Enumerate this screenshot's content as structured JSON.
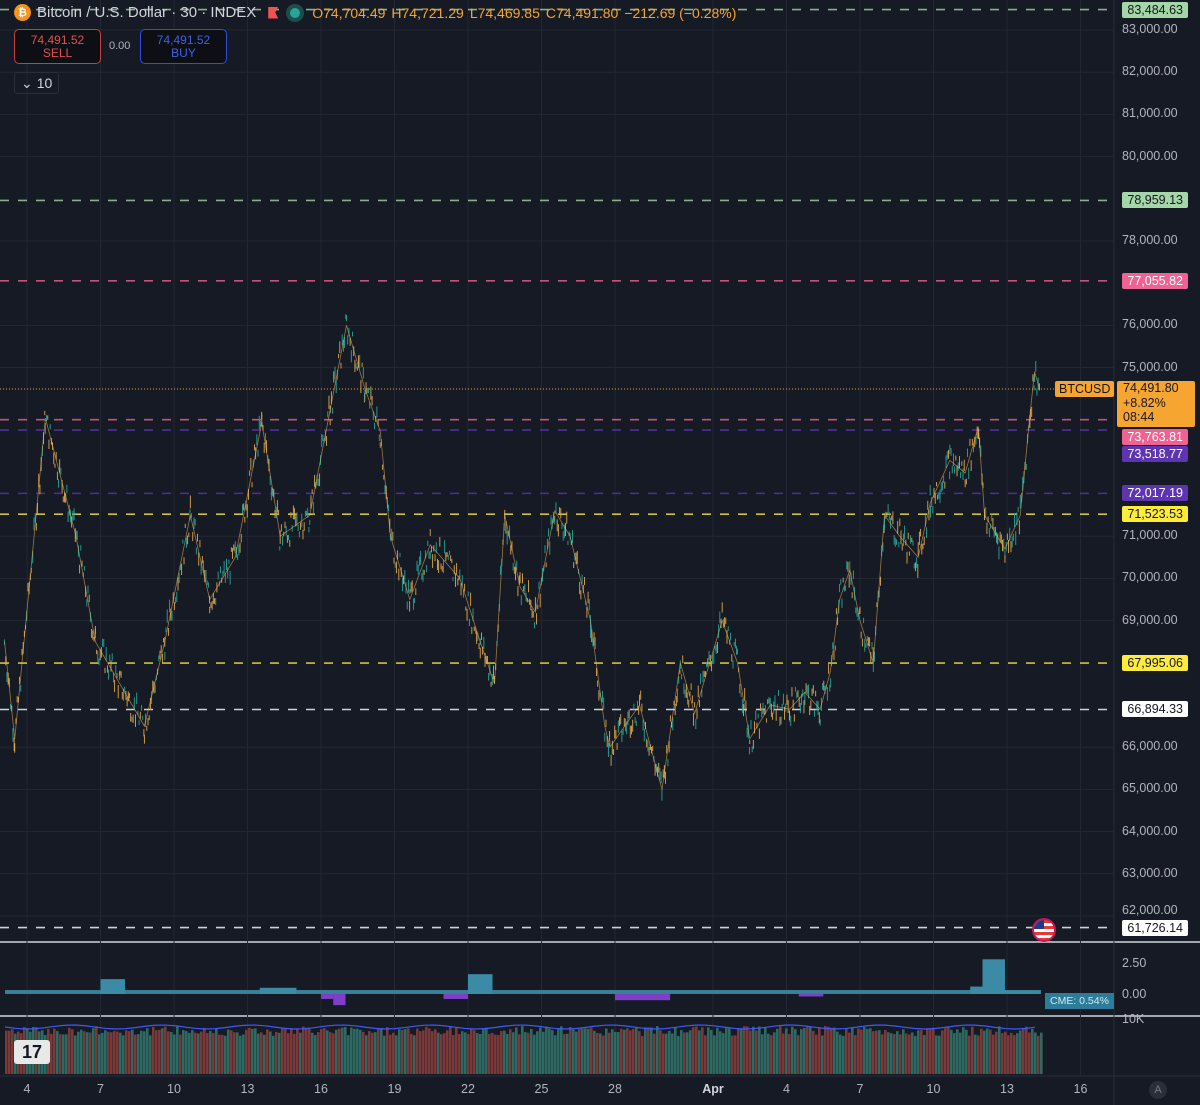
{
  "header": {
    "symbol_icon": "bitcoin-icon",
    "title": "Bitcoin / U.S. Dollar · 30 · INDEX",
    "open": "O74,704.49",
    "high": "H74,721.29",
    "low": "L74,469.85",
    "close": "C74,491.80",
    "change": "−212.69 (−0.28%)"
  },
  "trade": {
    "sell_price": "74,491.52",
    "sell_label": "SELL",
    "spread": "0.00",
    "buy_price": "74,491.52",
    "buy_label": "BUY",
    "collapse_label": "10"
  },
  "price_axis": {
    "ticks": [
      "83,000.00",
      "82,000.00",
      "81,000.00",
      "80,000.00",
      "78,000.00",
      "76,000.00",
      "75,000.00",
      "71,000.00",
      "70,000.00",
      "69,000.00",
      "66,000.00",
      "65,000.00",
      "64,000.00",
      "63,000.00",
      "62,000.00"
    ]
  },
  "last_price": {
    "symbol": "BTCUSD",
    "price": "74,491.80",
    "change_pct": "+8.82%",
    "countdown": "08:44",
    "color": "#f7a531"
  },
  "levels": [
    {
      "value": "83,484.63",
      "color": "#a5d6a7"
    },
    {
      "value": "78,959.13",
      "color": "#a5d6a7"
    },
    {
      "value": "77,055.82",
      "color": "#f06292"
    },
    {
      "value": "73,763.81",
      "color": "#f06292"
    },
    {
      "value": "73,518.77",
      "color": "#5e35b1"
    },
    {
      "value": "72,017.19",
      "color": "#5e35b1"
    },
    {
      "value": "71,523.53",
      "color": "#ffeb3b"
    },
    {
      "value": "67,995.06",
      "color": "#ffeb3b"
    },
    {
      "value": "66,894.33",
      "color": "#ffffff"
    },
    {
      "value": "61,726.14",
      "color": "#ffffff"
    }
  ],
  "indicator": {
    "ticks": [
      "2.50",
      "0.00"
    ],
    "label": "CME: 0.54%"
  },
  "volume": {
    "tick": "10K"
  },
  "time_axis": {
    "labels": [
      "4",
      "7",
      "10",
      "13",
      "16",
      "19",
      "22",
      "25",
      "28",
      "Apr",
      "4",
      "7",
      "10",
      "13",
      "16"
    ],
    "auto_label": "A"
  },
  "chart_data": {
    "type": "line",
    "title": "Bitcoin / U.S. Dollar · 30 · INDEX",
    "ylim": [
      61500,
      83600
    ],
    "x_unit": "month-day hour",
    "xlim": [
      "03-03 02:00",
      "04-17 00:00"
    ],
    "grid": true,
    "series": [
      {
        "name": "BTCUSD",
        "points": [
          [
            "03-03 02:00",
            68500
          ],
          [
            "03-03 12:00",
            66200
          ],
          [
            "03-04 18:00",
            73800
          ],
          [
            "03-05 08:00",
            72500
          ],
          [
            "03-06 00:00",
            71000
          ],
          [
            "03-06 19:00",
            68500
          ],
          [
            "03-07 19:00",
            67500
          ],
          [
            "03-08 19:00",
            66500
          ],
          [
            "03-09 15:00",
            68500
          ],
          [
            "03-10 16:00",
            71500
          ],
          [
            "03-11 11:00",
            69500
          ],
          [
            "03-12 12:00",
            70500
          ],
          [
            "03-13 14:00",
            73700
          ],
          [
            "03-14 08:00",
            71000
          ],
          [
            "03-15 13:00",
            71500
          ],
          [
            "03-16 09:00",
            74000
          ],
          [
            "03-17 01:00",
            76000
          ],
          [
            "03-17 19:00",
            74500
          ],
          [
            "03-18 10:00",
            73500
          ],
          [
            "03-18 20:00",
            71000
          ],
          [
            "03-19 15:00",
            69500
          ],
          [
            "03-20 11:00",
            70800
          ],
          [
            "03-21 16:00",
            70000
          ],
          [
            "03-22 12:00",
            68500
          ],
          [
            "03-23 02:00",
            67500
          ],
          [
            "03-23 12:00",
            71500
          ],
          [
            "03-24 03:00",
            69800
          ],
          [
            "03-24 18:00",
            69200
          ],
          [
            "03-25 13:00",
            71600
          ],
          [
            "03-26 04:00",
            71000
          ],
          [
            "03-27 00:00",
            69000
          ],
          [
            "03-27 14:00",
            66500
          ],
          [
            "03-27 19:00",
            66000
          ],
          [
            "03-29 00:00",
            67000
          ],
          [
            "03-29 22:00",
            65000
          ],
          [
            "03-30 16:00",
            68000
          ],
          [
            "03-31 06:00",
            66800
          ],
          [
            "04-01 09:00",
            69000
          ],
          [
            "04-02 00:00",
            68000
          ],
          [
            "04-02 12:00",
            66200
          ],
          [
            "04-03 08:00",
            67000
          ],
          [
            "04-04 03:00",
            66900
          ],
          [
            "04-04 18:00",
            67300
          ],
          [
            "04-05 09:00",
            66900
          ],
          [
            "04-05 19:00",
            67800
          ],
          [
            "04-06 04:00",
            69500
          ],
          [
            "04-06 14:00",
            70200
          ],
          [
            "04-07 00:00",
            69000
          ],
          [
            "04-07 13:00",
            68000
          ],
          [
            "04-08 00:00",
            71500
          ],
          [
            "04-08 15:00",
            71000
          ],
          [
            "04-09 09:00",
            70500
          ],
          [
            "04-09 21:00",
            71800
          ],
          [
            "04-10 16:00",
            72800
          ],
          [
            "04-11 07:00",
            72500
          ],
          [
            "04-11 20:00",
            73600
          ],
          [
            "04-12 02:00",
            71500
          ],
          [
            "04-12 22:00",
            70700
          ],
          [
            "04-13 13:00",
            71500
          ],
          [
            "04-13 23:00",
            74000
          ],
          [
            "04-14 03:00",
            74900
          ],
          [
            "04-14 08:00",
            74491.8
          ]
        ]
      }
    ],
    "indicator_series": {
      "name": "CME",
      "ylim": [
        -0.9,
        3.2
      ],
      "segments": [
        [
          "03-07 00:00",
          "03-08 00:00",
          1.2
        ],
        [
          "03-13 12:00",
          "03-15 00:00",
          0.5
        ],
        [
          "03-16 00:00",
          "03-16 12:00",
          -0.4
        ],
        [
          "03-16 12:00",
          "03-17 00:00",
          -0.9
        ],
        [
          "03-21 00:00",
          "03-22 00:00",
          -0.4
        ],
        [
          "03-22 00:00",
          "03-23 00:00",
          1.6
        ],
        [
          "03-28 00:00",
          "03-30 06:00",
          -0.5
        ],
        [
          "04-04 12:00",
          "04-05 12:00",
          -0.2
        ],
        [
          "04-11 12:00",
          "04-12 00:00",
          0.6
        ],
        [
          "04-12 00:00",
          "04-12 22:00",
          2.8
        ],
        [
          "04-12 22:00",
          "04-14 08:00",
          0.25
        ]
      ]
    }
  }
}
